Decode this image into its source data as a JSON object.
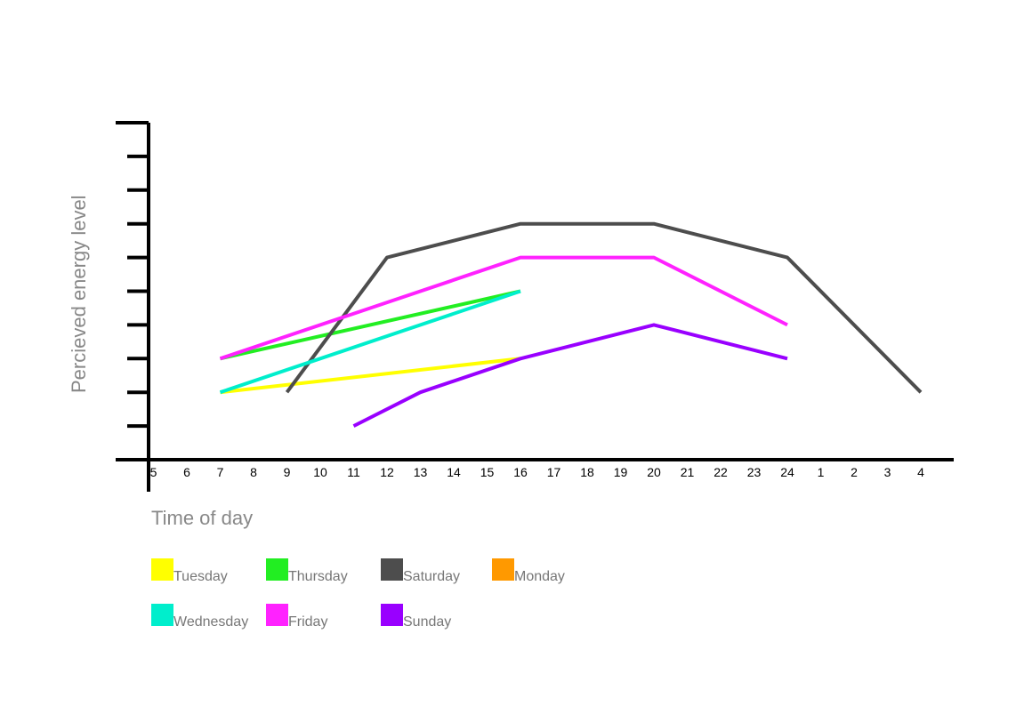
{
  "chart_data": {
    "type": "line",
    "xlabel": "Time of day",
    "ylabel": "Percieved energy level",
    "x_tick_labels": [
      "5",
      "6",
      "7",
      "8",
      "9",
      "10",
      "11",
      "12",
      "13",
      "14",
      "15",
      "16",
      "17",
      "18",
      "19",
      "20",
      "21",
      "22",
      "23",
      "24",
      "1",
      "2",
      "3",
      "4"
    ],
    "y_ticks": [
      1,
      2,
      3,
      4,
      5,
      6,
      7,
      8,
      9,
      10
    ],
    "ylim": [
      0,
      10
    ],
    "grid": false,
    "legend_position": "bottom-left",
    "series": [
      {
        "name": "Tuesday",
        "color": "#ffff00",
        "points": [
          [
            7,
            2
          ],
          [
            16,
            3
          ]
        ]
      },
      {
        "name": "Thursday",
        "color": "#22ee22",
        "points": [
          [
            7,
            3
          ],
          [
            16,
            5
          ]
        ]
      },
      {
        "name": "Saturday",
        "color": "#4d4d4d",
        "points": [
          [
            9,
            2
          ],
          [
            12,
            6
          ],
          [
            16,
            7
          ],
          [
            20,
            7
          ],
          [
            24,
            6
          ],
          [
            4,
            2
          ]
        ]
      },
      {
        "name": "Monday",
        "color": "#ff9900",
        "points": []
      },
      {
        "name": "Wednesday",
        "color": "#00eecc",
        "points": [
          [
            7,
            2
          ],
          [
            16,
            5
          ]
        ]
      },
      {
        "name": "Friday",
        "color": "#ff22ff",
        "points": [
          [
            7,
            3
          ],
          [
            16,
            6
          ],
          [
            20,
            6
          ],
          [
            24,
            4
          ]
        ]
      },
      {
        "name": "Sunday",
        "color": "#9900ff",
        "points": [
          [
            11,
            1
          ],
          [
            13,
            2
          ],
          [
            16,
            3
          ],
          [
            20,
            4
          ],
          [
            24,
            3
          ]
        ]
      }
    ]
  }
}
